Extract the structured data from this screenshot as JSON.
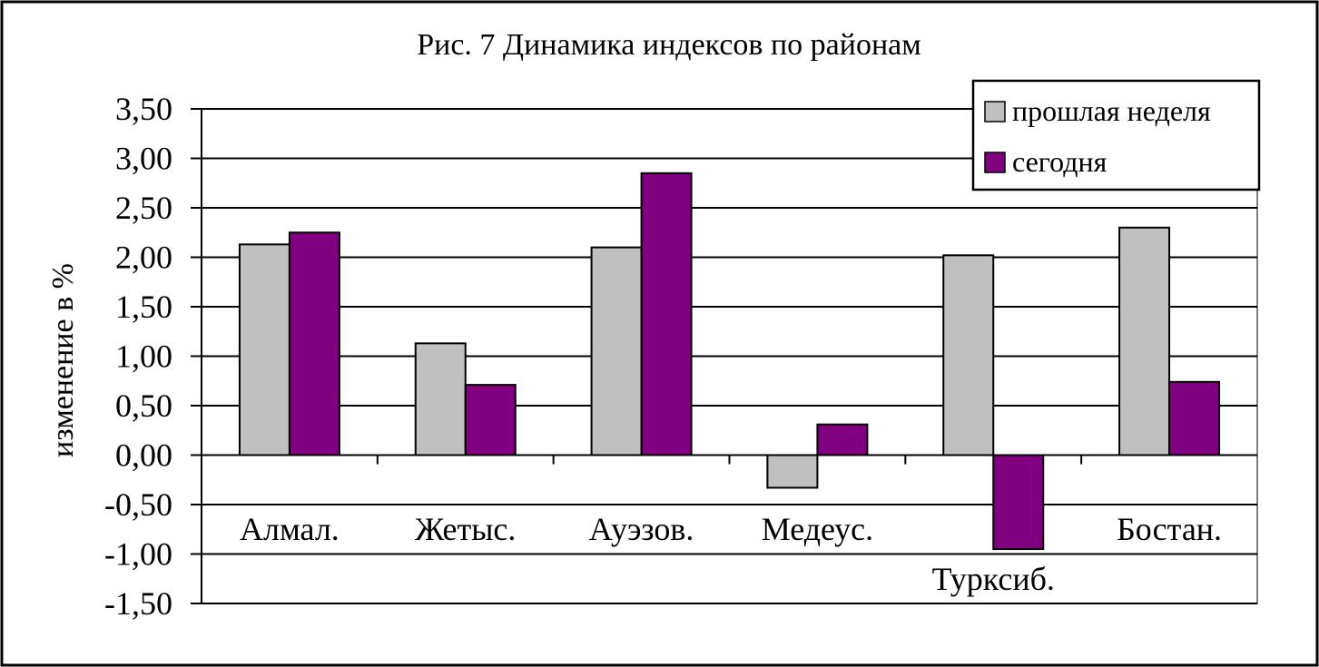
{
  "colors": {
    "last_week": "#C0C0C0",
    "today": "#800080"
  },
  "chart_data": {
    "type": "bar",
    "title": "Рис. 7 Динамика индексов по районам",
    "xlabel": "",
    "ylabel": "изменение в %",
    "ylim": [
      -1.5,
      3.5
    ],
    "ytick_step": 0.5,
    "yticks": [
      "3,50",
      "3,00",
      "2,50",
      "2,00",
      "1,50",
      "1,00",
      "0,50",
      "0,00",
      "-0,50",
      "-1,00",
      "-1,50"
    ],
    "grid": true,
    "legend_position": "top-right",
    "categories": [
      "Алмал.",
      "Жетыс.",
      "Ауэзов.",
      "Медеус.",
      "Турксиб.",
      "Бостан."
    ],
    "series": [
      {
        "name": "прошлая неделя",
        "values": [
          2.13,
          1.13,
          2.1,
          -0.33,
          2.02,
          2.3
        ]
      },
      {
        "name": "сегодня",
        "values": [
          2.25,
          0.71,
          2.85,
          0.31,
          -0.95,
          0.74
        ]
      }
    ]
  }
}
